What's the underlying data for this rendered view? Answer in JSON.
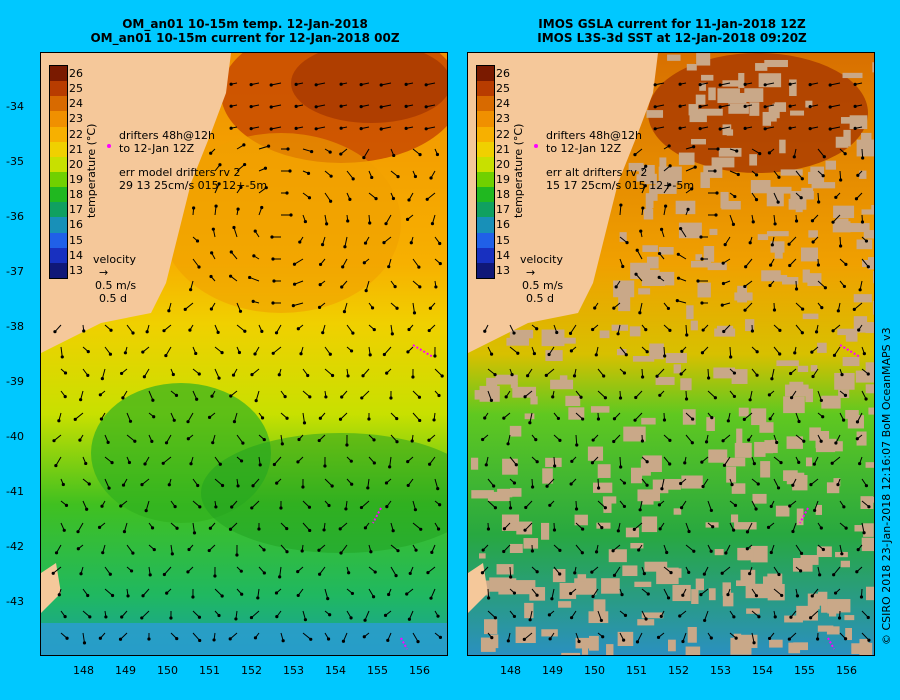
{
  "left_panel": {
    "title_line1": "OM_an01 10-15m temp. 12-Jan-2018",
    "title_line2": "OM_an01 10-15m current for 12-Jan-2018 00Z",
    "drifters_line1": "drifters 48h@12h",
    "drifters_line2": "to 12-Jan 12Z",
    "err_line1": "err model drifters rv 2",
    "err_line2": "29 13 25cm/s 015 12+-5m",
    "velocity_label": "velocity",
    "velocity_scale": "0.5 m/s",
    "velocity_time": "0.5 d"
  },
  "right_panel": {
    "title_line1": "IMOS GSLA current for 11-Jan-2018 12Z",
    "title_line2": "IMOS L3S-3d SST at 12-Jan-2018 09:20Z",
    "drifters_line1": "drifters 48h@12h",
    "drifters_line2": "to 12-Jan 12Z",
    "err_line1": "err alt drifters rv 2",
    "err_line2": "15 17 25cm/s 015 12+-5m",
    "velocity_label": "velocity",
    "velocity_scale": "0.5 m/s",
    "velocity_time": "0.5 d"
  },
  "colorbar": {
    "title": "temperature (°C)",
    "ticks": [
      "26",
      "25",
      "24",
      "23",
      "22",
      "21",
      "20",
      "19",
      "18",
      "17",
      "16",
      "15",
      "14",
      "13"
    ],
    "colors": [
      "#7a1a00",
      "#b83c00",
      "#d86a00",
      "#f09000",
      "#f7b000",
      "#f0d000",
      "#c8e000",
      "#70d000",
      "#20b820",
      "#10a060",
      "#1890b8",
      "#2060e8",
      "#1830c0",
      "#101878"
    ]
  },
  "y_axis_labels": [
    "-34",
    "-35",
    "-36",
    "-37",
    "-38",
    "-39",
    "-40",
    "-41",
    "-42",
    "-43"
  ],
  "x_axis_labels": [
    "148",
    "149",
    "150",
    "151",
    "152",
    "153",
    "154",
    "155",
    "156"
  ],
  "credit": "© CSIRO 2018   23-Jan-2018 12:16:07 BoM OceanMAPS v3",
  "colors": {
    "background": "#00c8ff",
    "land": "#f5c89a",
    "drifter": "#ff00ff"
  }
}
